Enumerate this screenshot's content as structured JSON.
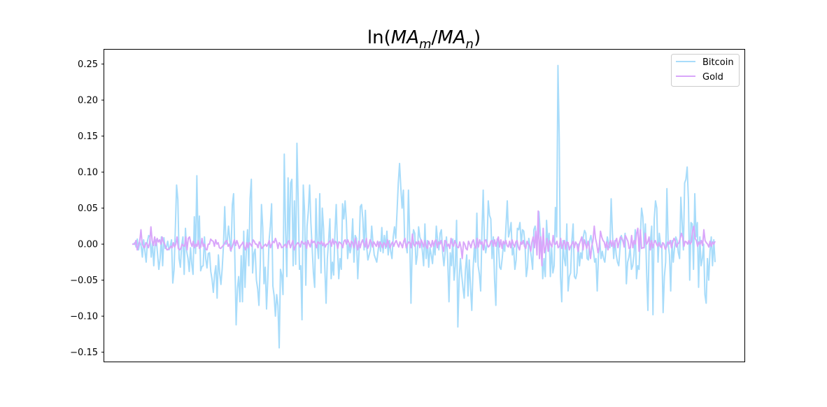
{
  "chart_data": {
    "type": "line",
    "title": {
      "prefix": "ln(",
      "sym1": "MA",
      "sub1": "m",
      "slash": "/",
      "sym2": "MA",
      "sub2": "n",
      "suffix": ")"
    },
    "xlabel": "",
    "ylabel": "",
    "ylim": [
      -0.163,
      0.27
    ],
    "yticks": [
      "0.25",
      "0.20",
      "0.15",
      "0.10",
      "0.05",
      "0.00",
      "−0.05",
      "−0.10",
      "−0.15"
    ],
    "ytick_values": [
      0.25,
      0.2,
      0.15,
      0.1,
      0.05,
      0.0,
      -0.05,
      -0.1,
      -0.15
    ],
    "x_axis_labels": "none",
    "grid": false,
    "legend_position": "upper right",
    "series": [
      {
        "name": "Bitcoin",
        "color": "#a8dcfa",
        "values": [
          0.0,
          0.0,
          0.002,
          -0.004,
          0.007,
          -0.008,
          0.003,
          -0.002,
          -0.018,
          0.006,
          -0.01,
          -0.025,
          0.004,
          0.012,
          0.01,
          -0.018,
          0.003,
          -0.03,
          -0.002,
          0.006,
          -0.014,
          -0.035,
          -0.02,
          0.01,
          -0.03,
          0.009,
          -0.006,
          -0.004,
          0.004,
          -0.008,
          -0.003,
          0.006,
          -0.054,
          -0.036,
          0.02,
          0.082,
          0.062,
          -0.02,
          -0.032,
          -0.002,
          0.01,
          -0.042,
          0.022,
          -0.01,
          -0.02,
          -0.038,
          -0.005,
          -0.028,
          -0.042,
          0.038,
          -0.013,
          0.095,
          0.0,
          0.039,
          -0.037,
          -0.031,
          -0.03,
          0.01,
          -0.02,
          -0.033,
          -0.013,
          -0.012,
          -0.038,
          -0.049,
          -0.067,
          -0.042,
          -0.03,
          -0.075,
          -0.015,
          -0.04,
          -0.056,
          -0.034,
          -0.002,
          0.052,
          0.0,
          0.005,
          0.025,
          0.005,
          -0.01,
          0.055,
          0.07,
          -0.02,
          -0.112,
          -0.062,
          -0.045,
          -0.08,
          -0.016,
          -0.08,
          0.018,
          -0.06,
          -0.01,
          0.02,
          -0.03,
          0.063,
          0.09,
          -0.04,
          -0.013,
          -0.007,
          -0.05,
          -0.062,
          -0.085,
          -0.03,
          0.055,
          0.023,
          -0.055,
          -0.032,
          -0.09,
          -0.048,
          0.005,
          0.025,
          0.056,
          -0.058,
          -0.072,
          -0.1,
          -0.07,
          -0.085,
          -0.144,
          -0.035,
          -0.043,
          -0.07,
          0.125,
          0.02,
          -0.045,
          0.092,
          0.0,
          0.085,
          0.09,
          -0.03,
          0.06,
          -0.028,
          0.14,
          0.06,
          -0.035,
          -0.03,
          -0.105,
          0.082,
          0.046,
          -0.057,
          0.025,
          0.046,
          0.082,
          0.03,
          -0.005,
          -0.04,
          -0.06,
          0.063,
          0.0,
          -0.02,
          0.07,
          -0.04,
          0.05,
          0.022,
          -0.033,
          -0.082,
          -0.02,
          0.005,
          0.035,
          -0.048,
          -0.025,
          -0.043,
          0.017,
          0.055,
          -0.005,
          -0.048,
          -0.02,
          -0.035,
          0.056,
          0.035,
          0.06,
          0.032,
          -0.02,
          0.0,
          -0.012,
          -0.002,
          0.035,
          -0.025,
          0.012,
          0.008,
          -0.048,
          -0.01,
          0.052,
          0.055,
          0.035,
          -0.008,
          0.047,
          -0.003,
          -0.022,
          -0.015,
          -0.008,
          0.025,
          0.002,
          -0.015,
          -0.02,
          -0.025,
          -0.01,
          0.003,
          -0.01,
          0.023,
          -0.012,
          0.012,
          -0.006,
          0.018,
          -0.015,
          0.005,
          -0.01,
          -0.02,
          0.01,
          0.024,
          0.008,
          0.045,
          0.085,
          0.112,
          0.078,
          0.05,
          0.075,
          0.005,
          0.0,
          -0.012,
          0.075,
          0.01,
          -0.082,
          -0.003,
          0.02,
          0.015,
          -0.028,
          -0.015,
          0.024,
          0.01,
          0.005,
          -0.01,
          -0.03,
          0.028,
          -0.02,
          0.005,
          -0.032,
          -0.005,
          -0.015,
          -0.027,
          0.0,
          -0.015,
          0.025,
          0.005,
          -0.008,
          0.015,
          0.02,
          -0.012,
          -0.03,
          -0.01,
          0.01,
          -0.022,
          -0.08,
          -0.012,
          -0.03,
          0.007,
          -0.05,
          -0.03,
          0.033,
          -0.115,
          -0.05,
          -0.02,
          -0.042,
          -0.06,
          -0.075,
          -0.035,
          -0.015,
          -0.072,
          -0.022,
          -0.06,
          -0.092,
          -0.035,
          -0.005,
          -0.025,
          0.043,
          -0.03,
          -0.042,
          -0.065,
          0.015,
          0.075,
          0.0,
          -0.012,
          0.0,
          0.06,
          0.04,
          0.035,
          -0.02,
          0.01,
          -0.05,
          -0.085,
          0.007,
          0.0,
          -0.032,
          -0.035,
          -0.02,
          0.0,
          -0.01,
          0.025,
          0.06,
          0.01,
          0.018,
          0.03,
          -0.015,
          -0.005,
          -0.035,
          -0.022,
          0.022,
          0.02,
          0.03,
          0.0,
          0.02,
          0.018,
          0.0,
          -0.045,
          -0.032,
          0.008,
          -0.005,
          -0.018,
          -0.035,
          0.02,
          0.025,
          0.01,
          0.008,
          0.045,
          0.017,
          0.0,
          -0.048,
          -0.02,
          -0.045,
          0.033,
          0.0,
          0.015,
          -0.045,
          -0.005,
          -0.04,
          -0.03,
          0.051,
          0.01,
          0.248,
          0.15,
          -0.045,
          -0.08,
          0.005,
          -0.02,
          -0.03,
          0.028,
          -0.065,
          -0.045,
          -0.04,
          0.005,
          0.028,
          -0.045,
          -0.048,
          -0.04,
          0.0,
          -0.03,
          -0.012,
          -0.02,
          0.01,
          0.019,
          0.015,
          -0.02,
          -0.022,
          0.005,
          0.012,
          0.0,
          -0.01,
          -0.025,
          -0.02,
          -0.065,
          -0.015,
          0.005,
          -0.02,
          -0.01,
          -0.02,
          -0.025,
          -0.005,
          0.01,
          0.0,
          -0.005,
          0.063,
          0.015,
          -0.02,
          0.005,
          -0.015,
          -0.025,
          -0.03,
          -0.005,
          0.012,
          0.005,
          0.0,
          0.015,
          -0.055,
          -0.025,
          -0.018,
          -0.005,
          -0.035,
          -0.03,
          -0.015,
          0.02,
          -0.048,
          -0.03,
          -0.035,
          0.01,
          0.05,
          0.038,
          -0.005,
          0.028,
          -0.04,
          -0.092,
          0.0,
          0.005,
          0.025,
          -0.098,
          0.035,
          0.06,
          0.05,
          -0.025,
          0.015,
          0.0,
          -0.005,
          -0.095,
          -0.045,
          -0.025,
          0.077,
          0.0,
          -0.015,
          -0.065,
          0.005,
          -0.025,
          -0.005,
          0.01,
          0.005,
          -0.012,
          -0.02,
          0.065,
          0.03,
          -0.008,
          0.085,
          0.09,
          0.107,
          0.06,
          -0.05,
          0.03,
          0.028,
          -0.035,
          0.07,
          0.01,
          0.03,
          -0.06,
          0.01,
          -0.03,
          -0.02,
          0.0,
          -0.07,
          -0.082,
          -0.02,
          -0.05,
          -0.01,
          0.01,
          -0.03,
          0.006,
          -0.025
        ]
      },
      {
        "name": "Gold",
        "color": "#d9a6fa",
        "values": [
          0.0,
          0.0,
          0.0,
          0.005,
          -0.008,
          -0.002,
          0.004,
          0.02,
          0.0,
          -0.003,
          -0.005,
          0.002,
          0.0,
          -0.005,
          0.002,
          0.024,
          0.005,
          -0.002,
          0.01,
          -0.002,
          0.008,
          0.003,
          0.006,
          0.0,
          0.01,
          0.003,
          0.0,
          -0.005,
          -0.008,
          -0.007,
          -0.006,
          -0.003,
          -0.005,
          0.002,
          -0.004,
          0.0,
          0.01,
          -0.006,
          -0.008,
          -0.006,
          0.0,
          -0.002,
          -0.003,
          0.01,
          -0.008,
          0.008,
          0.01,
          0.002,
          -0.003,
          0.004,
          -0.005,
          0.0,
          -0.003,
          0.005,
          -0.006,
          -0.004,
          0.008,
          -0.003,
          0.0,
          -0.007,
          -0.008,
          0.0,
          0.0,
          0.007,
          0.005,
          0.004,
          -0.003,
          0.006,
          0.0,
          0.002,
          -0.005,
          -0.006,
          -0.004,
          -0.002,
          0.0,
          0.004,
          0.005,
          -0.003,
          0.0,
          -0.009,
          -0.005,
          0.0,
          0.006,
          -0.002,
          0.005,
          0.0,
          -0.006,
          -0.002,
          0.0,
          0.003,
          -0.004,
          -0.008,
          0.002,
          -0.005,
          0.002,
          0.0,
          -0.003,
          0.006,
          0.004,
          0.0,
          0.0,
          -0.005,
          0.003,
          0.0,
          -0.006,
          -0.004,
          -0.002,
          0.0,
          -0.003,
          0.0,
          0.005,
          -0.005,
          0.0,
          0.004,
          0.002,
          0.008,
          0.003,
          -0.006,
          0.002,
          0.0,
          -0.005,
          -0.004,
          -0.002,
          0.0,
          -0.005,
          0.003,
          0.005,
          -0.005,
          0.0,
          0.005,
          -0.008,
          -0.003,
          0.0,
          0.002,
          0.0,
          -0.004,
          0.004,
          0.002,
          0.0,
          0.003,
          -0.006,
          0.005,
          0.0,
          -0.004,
          0.006,
          0.002,
          0.004,
          0.001,
          -0.005,
          0.003,
          0.002,
          0.0,
          0.004,
          -0.002,
          0.002,
          -0.004,
          0.0,
          0.0,
          0.003,
          0.005,
          -0.003,
          0.007,
          0.0,
          0.004,
          0.002,
          -0.006,
          0.003,
          0.002,
          0.0,
          -0.005,
          0.004,
          0.006,
          0.0,
          0.006,
          0.002,
          -0.004,
          0.004,
          0.002,
          -0.005,
          0.008,
          0.0,
          -0.008,
          0.004,
          -0.005,
          0.002,
          0.006,
          0.0,
          -0.004,
          0.008,
          -0.006,
          -0.002,
          0.006,
          0.003,
          -0.004,
          0.003,
          0.0,
          -0.003,
          0.004,
          -0.004,
          0.003,
          0.0,
          -0.005,
          0.002,
          0.0,
          -0.004,
          0.006,
          0.0,
          -0.005,
          0.0,
          0.003,
          -0.003,
          0.002,
          0.005,
          0.0,
          -0.004,
          0.003,
          0.0,
          -0.005,
          0.004,
          0.008,
          -0.005,
          0.0,
          0.003,
          0.002,
          -0.005,
          0.014,
          0.0,
          -0.003,
          0.003,
          0.0,
          0.004,
          -0.005,
          0.006,
          0.002,
          -0.004,
          0.005,
          -0.003,
          -0.006,
          0.004,
          0.0,
          -0.004,
          0.005,
          -0.003,
          0.004,
          0.006,
          -0.005,
          0.003,
          0.0,
          0.005,
          -0.003,
          -0.01,
          0.005,
          0.004,
          -0.003,
          0.0,
          -0.006,
          0.008,
          0.0,
          -0.003,
          0.005,
          0.0,
          -0.004,
          -0.005,
          0.003,
          -0.005,
          -0.02,
          0.003,
          0.0,
          -0.006,
          -0.008,
          0.004,
          0.0,
          -0.005,
          0.003,
          0.006,
          -0.003,
          -0.006,
          0.008,
          -0.004,
          0.006,
          0.0,
          0.003,
          -0.008,
          0.005,
          0.006,
          0.0,
          -0.004,
          -0.002,
          0.004,
          0.005,
          -0.003,
          0.006,
          -0.003,
          0.005,
          0.01,
          -0.004,
          0.006,
          -0.006,
          0.004,
          0.0,
          0.005,
          -0.002,
          -0.004,
          0.004,
          -0.005,
          0.006,
          0.0,
          -0.004,
          0.003,
          0.005,
          -0.004,
          -0.008,
          0.003,
          0.0,
          0.005,
          -0.003,
          -0.006,
          0.004,
          0.0,
          -0.002,
          -0.01,
          0.003,
          0.01,
          -0.005,
          0.018,
          -0.015,
          0.046,
          -0.02,
          0.01,
          -0.03,
          0.022,
          -0.012,
          -0.005,
          0.008,
          -0.01,
          0.005,
          0.0,
          -0.004,
          0.012,
          0.0,
          0.0,
          0.004,
          -0.005,
          -0.003,
          0.008,
          -0.006,
          0.0,
          0.005,
          -0.007,
          0.003,
          0.002,
          -0.008,
          -0.003,
          0.0,
          0.004,
          -0.005,
          0.003,
          0.0,
          -0.01,
          0.0,
          0.005,
          0.01,
          -0.008,
          0.006,
          0.0,
          -0.006,
          0.004,
          -0.004,
          -0.02,
          -0.003,
          0.005,
          0.025,
          0.008,
          0.0,
          -0.012,
          -0.004,
          0.018,
          0.01,
          0.005,
          0.003,
          -0.005,
          0.003,
          -0.008,
          0.0,
          0.005,
          -0.003,
          0.005,
          -0.005,
          0.004,
          0.008,
          -0.005,
          0.003,
          0.01,
          0.008,
          0.005,
          -0.004,
          0.012,
          0.008,
          0.004,
          -0.006,
          -0.005,
          0.012,
          -0.005,
          0.005,
          0.0,
          0.015,
          0.022,
          -0.01,
          0.02,
          -0.006,
          -0.005,
          -0.005,
          0.015,
          0.0,
          0.003,
          0.01,
          -0.008,
          0.005,
          -0.005,
          0.002,
          0.005,
          0.0,
          -0.003,
          0.002,
          -0.003,
          -0.005,
          0.002,
          0.0,
          -0.007,
          -0.004,
          0.003,
          0.0,
          0.005,
          -0.005,
          0.002,
          0.008,
          0.005,
          -0.004,
          0.0,
          0.002,
          0.008,
          0.015,
          0.01,
          -0.003,
          0.004,
          0.003,
          0.0,
          0.005,
          0.0,
          0.003,
          0.018,
          0.025,
          0.008,
          0.005,
          -0.003,
          0.003,
          0.0,
          0.005,
          -0.002,
          0.02,
          0.005,
          0.002,
          0.0,
          -0.004,
          0.004,
          -0.003,
          0.003,
          0.0,
          0.004
        ]
      }
    ]
  }
}
